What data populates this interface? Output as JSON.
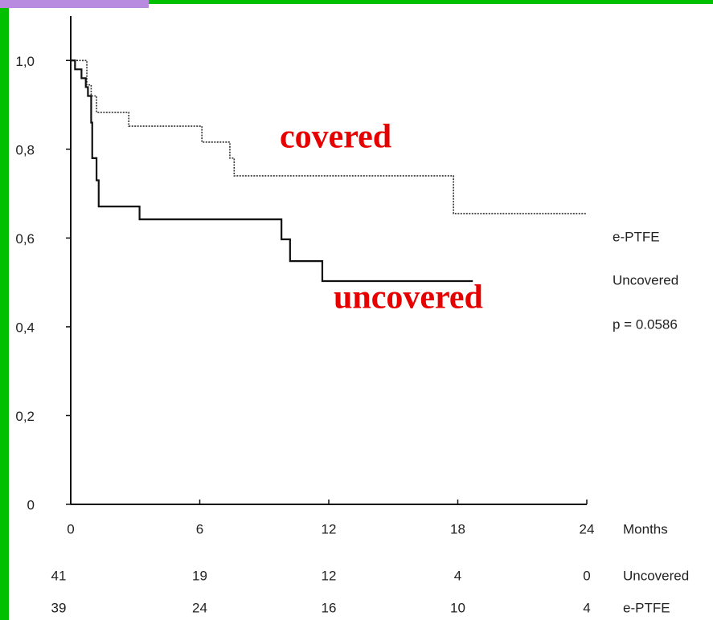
{
  "chart_data": {
    "type": "line",
    "step": "post",
    "xlabel": "Months",
    "xlim": [
      0,
      24
    ],
    "xticks": [
      0,
      6,
      12,
      18,
      24
    ],
    "ylim": [
      0,
      1.1
    ],
    "yticks": [
      0,
      {
        "value": 0.2,
        "label": "0,2"
      },
      {
        "value": 0.4,
        "label": "0,4"
      },
      {
        "value": 0.6,
        "label": "0,6"
      },
      {
        "value": 0.8,
        "label": "0,8"
      },
      {
        "value": 1.0,
        "label": "1,0"
      }
    ],
    "series": [
      {
        "name": "e-PTFE",
        "color": "#333333",
        "line_style": "dotted",
        "x": [
          0,
          0.75,
          0.95,
          1.2,
          2.7,
          6.1,
          7.4,
          7.6,
          17.8,
          24
        ],
        "values": [
          1.0,
          0.945,
          0.92,
          0.883,
          0.852,
          0.816,
          0.78,
          0.74,
          0.655,
          0.655
        ]
      },
      {
        "name": "Uncovered",
        "color": "#111111",
        "line_style": "solid",
        "x": [
          0,
          0.2,
          0.5,
          0.7,
          0.8,
          0.95,
          1.0,
          1.2,
          1.3,
          3.2,
          9.8,
          10.2,
          11.7,
          18.7
        ],
        "values": [
          1.0,
          0.98,
          0.96,
          0.94,
          0.92,
          0.86,
          0.78,
          0.73,
          0.671,
          0.642,
          0.597,
          0.548,
          0.503,
          0.503
        ]
      }
    ],
    "annotations": [
      "covered",
      "uncovered",
      "p = 0.0586"
    ],
    "annotation_color": "#e60000",
    "risk_table": [
      {
        "name": "Uncovered",
        "values": [
          41,
          19,
          12,
          4,
          0
        ]
      },
      {
        "name": "e-PTFE",
        "values": [
          39,
          24,
          16,
          10,
          4
        ]
      }
    ]
  }
}
